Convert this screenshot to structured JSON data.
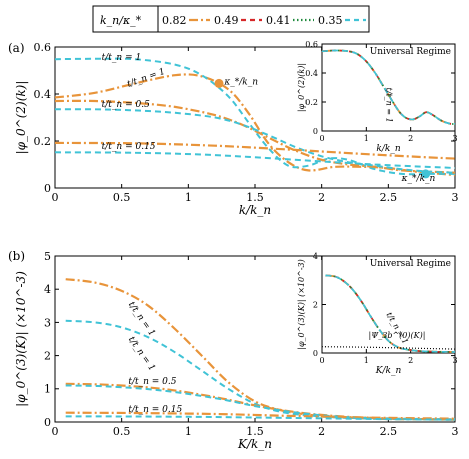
{
  "colors": {
    "orange": "#e8943a",
    "red": "#d62728",
    "green": "#1f8a3c",
    "cyan": "#40c3d6",
    "dot": "#000000"
  },
  "legend": {
    "header": "k_n/κ_*",
    "items": [
      {
        "label": "0.82",
        "color": "#e8943a",
        "dash": "dashdot"
      },
      {
        "label": "0.49",
        "color": "#d62728",
        "dash": "dash"
      },
      {
        "label": "0.41",
        "color": "#1f8a3c",
        "dash": "dot"
      },
      {
        "label": "0.35",
        "color": "#40c3d6",
        "dash": "dash"
      }
    ]
  },
  "chart_data": [
    {
      "panel": "(a)",
      "type": "line",
      "xlabel": "k/k_n",
      "ylabel": "|φ_0^(2)(k)|",
      "xlim": [
        0,
        3
      ],
      "ylim": [
        0,
        0.6
      ],
      "xticks": [
        "0",
        "0.5",
        "1",
        "1.5",
        "2",
        "2.5",
        "3"
      ],
      "yticks": [
        "0",
        "0.2",
        "0.4",
        "0.6"
      ],
      "annotations": [
        {
          "text": "t/t_n = 1",
          "x": 0.35,
          "y": 0.545
        },
        {
          "text": "t/t_n = 1",
          "x": 0.55,
          "y": 0.43,
          "rotate": -20
        },
        {
          "text": "t/t_n = 0.5",
          "x": 0.35,
          "y": 0.345
        },
        {
          "text": "t/t_n = 0.15",
          "x": 0.35,
          "y": 0.165
        },
        {
          "text": "κ_*/k_n",
          "x": 1.27,
          "y": 0.44
        },
        {
          "text": "κ_*/k_n",
          "x": 2.6,
          "y": 0.03
        }
      ],
      "markers": [
        {
          "x": 1.23,
          "y": 0.445,
          "color": "#e8943a"
        },
        {
          "x": 2.78,
          "y": 0.06,
          "color": "#40c3d6"
        }
      ],
      "series": [
        {
          "name": "0.82",
          "style": "orange",
          "x": [
            0,
            0.3,
            0.6,
            0.9,
            1.1,
            1.3,
            1.45,
            1.6,
            1.75,
            1.9,
            2.1,
            2.3,
            2.5,
            2.7,
            2.9,
            3.0
          ],
          "y": [
            0.385,
            0.405,
            0.445,
            0.48,
            0.475,
            0.42,
            0.32,
            0.19,
            0.11,
            0.075,
            0.09,
            0.09,
            0.085,
            0.07,
            0.06,
            0.055
          ]
        },
        {
          "name": "0.35",
          "style": "cyan",
          "x": [
            0,
            0.3,
            0.6,
            0.9,
            1.1,
            1.3,
            1.45,
            1.6,
            1.75,
            1.9,
            2.05,
            2.2,
            2.4,
            2.6,
            2.8,
            3.0
          ],
          "y": [
            0.548,
            0.55,
            0.548,
            0.525,
            0.48,
            0.39,
            0.28,
            0.17,
            0.095,
            0.095,
            0.125,
            0.12,
            0.08,
            0.06,
            0.06,
            0.06
          ]
        },
        {
          "name": "0.82",
          "style": "orange",
          "x": [
            0,
            0.3,
            0.6,
            0.9,
            1.2,
            1.4,
            1.6,
            1.8,
            2.0,
            2.2,
            2.4,
            2.6,
            2.8,
            3.0
          ],
          "y": [
            0.37,
            0.37,
            0.362,
            0.345,
            0.31,
            0.27,
            0.215,
            0.16,
            0.12,
            0.1,
            0.09,
            0.075,
            0.07,
            0.065
          ]
        },
        {
          "name": "0.35",
          "style": "cyan",
          "x": [
            0,
            0.3,
            0.6,
            0.9,
            1.2,
            1.4,
            1.6,
            1.8,
            2.0,
            2.2,
            2.4,
            2.6,
            2.8,
            3.0
          ],
          "y": [
            0.335,
            0.335,
            0.33,
            0.32,
            0.3,
            0.27,
            0.225,
            0.175,
            0.135,
            0.11,
            0.095,
            0.08,
            0.07,
            0.065
          ]
        },
        {
          "name": "0.82",
          "style": "orange",
          "x": [
            0,
            0.6,
            1.2,
            1.8,
            2.4,
            3.0
          ],
          "y": [
            0.192,
            0.19,
            0.18,
            0.162,
            0.142,
            0.125
          ]
        },
        {
          "name": "0.35",
          "style": "cyan",
          "x": [
            0,
            0.6,
            1.2,
            1.8,
            2.4,
            3.0
          ],
          "y": [
            0.152,
            0.15,
            0.14,
            0.12,
            0.1,
            0.085
          ]
        }
      ]
    },
    {
      "panel": "(a) inset",
      "type": "line",
      "title": "Universal Regime",
      "xlabel": "k/k_n",
      "ylabel": "|φ_0^(2)(k)|",
      "xlim": [
        0,
        3
      ],
      "ylim": [
        0,
        0.6
      ],
      "xticks": [
        "0",
        "1",
        "2",
        "3"
      ],
      "yticks": [
        "0",
        "0.2",
        "0.4",
        "0.6"
      ],
      "annotations": [
        {
          "text": "t/t_n = 1",
          "x": 1.45,
          "y": 0.3,
          "rotate": 90
        }
      ],
      "series": [
        {
          "name": "0.82",
          "style": "orange",
          "x": [
            0,
            0.3,
            0.6,
            0.8,
            1.0,
            1.2,
            1.4,
            1.6,
            1.75,
            1.9,
            2.05,
            2.2,
            2.35,
            2.5,
            2.7,
            2.9,
            3.0
          ],
          "y": [
            0.55,
            0.555,
            0.55,
            0.53,
            0.48,
            0.4,
            0.3,
            0.2,
            0.13,
            0.09,
            0.08,
            0.1,
            0.13,
            0.11,
            0.07,
            0.05,
            0.05
          ]
        },
        {
          "name": "0.49",
          "style": "red",
          "x": [
            0,
            0.3,
            0.6,
            0.8,
            1.0,
            1.2,
            1.4,
            1.6,
            1.75,
            1.9,
            2.05,
            2.2,
            2.35,
            2.5,
            2.7,
            2.9,
            3.0
          ],
          "y": [
            0.55,
            0.555,
            0.55,
            0.53,
            0.48,
            0.4,
            0.3,
            0.2,
            0.13,
            0.09,
            0.08,
            0.1,
            0.13,
            0.11,
            0.07,
            0.05,
            0.05
          ]
        },
        {
          "name": "0.41",
          "style": "green",
          "x": [
            0,
            0.3,
            0.6,
            0.8,
            1.0,
            1.2,
            1.4,
            1.6,
            1.75,
            1.9,
            2.05,
            2.2,
            2.35,
            2.5,
            2.7,
            2.9,
            3.0
          ],
          "y": [
            0.55,
            0.555,
            0.55,
            0.53,
            0.48,
            0.4,
            0.3,
            0.2,
            0.13,
            0.09,
            0.08,
            0.1,
            0.13,
            0.11,
            0.07,
            0.05,
            0.05
          ]
        },
        {
          "name": "0.35",
          "style": "cyan",
          "x": [
            0,
            0.3,
            0.6,
            0.8,
            1.0,
            1.2,
            1.4,
            1.6,
            1.75,
            1.9,
            2.05,
            2.2,
            2.35,
            2.5,
            2.7,
            2.9,
            3.0
          ],
          "y": [
            0.55,
            0.555,
            0.55,
            0.53,
            0.48,
            0.4,
            0.3,
            0.2,
            0.13,
            0.09,
            0.08,
            0.1,
            0.13,
            0.11,
            0.07,
            0.05,
            0.05
          ]
        }
      ]
    },
    {
      "panel": "(b)",
      "type": "line",
      "xlabel": "K/k_n",
      "ylabel": "|φ_0^(3)(K)| (×10^-3)",
      "xlim": [
        0,
        3
      ],
      "ylim": [
        0,
        5
      ],
      "xticks": [
        "0",
        "0.5",
        "1",
        "1.5",
        "2",
        "2.5",
        "3"
      ],
      "yticks": [
        "0",
        "1",
        "2",
        "3",
        "4",
        "5"
      ],
      "annotations": [
        {
          "text": "t/t_n = 1",
          "x": 0.55,
          "y": 3.55,
          "rotate": 55
        },
        {
          "text": "t/t_n = 1",
          "x": 0.55,
          "y": 2.5,
          "rotate": 55
        },
        {
          "text": "t/t_n = 0.5",
          "x": 0.55,
          "y": 1.15
        },
        {
          "text": "t/t_n = 0.15",
          "x": 0.55,
          "y": 0.3
        }
      ],
      "series": [
        {
          "name": "0.82",
          "style": "orange",
          "x": [
            0.08,
            0.3,
            0.5,
            0.7,
            0.9,
            1.1,
            1.3,
            1.5,
            1.7,
            1.9,
            2.1,
            2.4,
            2.7,
            3.0
          ],
          "y": [
            4.3,
            4.2,
            3.95,
            3.5,
            2.8,
            2.0,
            1.2,
            0.62,
            0.35,
            0.22,
            0.15,
            0.1,
            0.08,
            0.07
          ]
        },
        {
          "name": "0.35",
          "style": "cyan",
          "x": [
            0.08,
            0.3,
            0.5,
            0.7,
            0.9,
            1.1,
            1.3,
            1.5,
            1.7,
            1.9,
            2.1,
            2.4,
            2.7,
            3.0
          ],
          "y": [
            3.05,
            3.0,
            2.85,
            2.55,
            2.1,
            1.55,
            1.0,
            0.55,
            0.3,
            0.2,
            0.14,
            0.1,
            0.08,
            0.07
          ]
        },
        {
          "name": "0.82",
          "style": "orange",
          "x": [
            0.08,
            0.4,
            0.8,
            1.2,
            1.5,
            1.8,
            2.1,
            2.4,
            2.7,
            3.0
          ],
          "y": [
            1.15,
            1.12,
            1.0,
            0.75,
            0.5,
            0.3,
            0.18,
            0.12,
            0.09,
            0.08
          ]
        },
        {
          "name": "0.35",
          "style": "cyan",
          "x": [
            0.08,
            0.4,
            0.8,
            1.2,
            1.5,
            1.8,
            2.1,
            2.4,
            2.7,
            3.0
          ],
          "y": [
            1.1,
            1.07,
            0.95,
            0.72,
            0.48,
            0.29,
            0.17,
            0.11,
            0.09,
            0.08
          ]
        },
        {
          "name": "0.82",
          "style": "orange",
          "x": [
            0.08,
            0.6,
            1.2,
            1.8,
            2.4,
            3.0
          ],
          "y": [
            0.28,
            0.27,
            0.24,
            0.18,
            0.13,
            0.1
          ]
        },
        {
          "name": "0.35",
          "style": "cyan",
          "x": [
            0.08,
            0.6,
            1.2,
            1.8,
            2.4,
            3.0
          ],
          "y": [
            0.17,
            0.165,
            0.15,
            0.12,
            0.09,
            0.07
          ]
        }
      ]
    },
    {
      "panel": "(b) inset",
      "type": "line",
      "title": "Universal Regime",
      "xlabel": "K/k_n",
      "ylabel": "|φ_0^(3)(K)| (×10^-3)",
      "xlim": [
        0,
        3
      ],
      "ylim": [
        0,
        4
      ],
      "xticks": [
        "0",
        "1",
        "2",
        "3"
      ],
      "yticks": [
        "0",
        "2",
        "4"
      ],
      "annotations": [
        {
          "text": "t/t_n = 1",
          "x": 1.45,
          "y": 1.6,
          "rotate": 60
        },
        {
          "text": "|Ψ_3b^(0)(K)|",
          "x": 1.05,
          "y": 0.62
        }
      ],
      "series": [
        {
          "name": "0.82",
          "style": "orange",
          "x": [
            0.08,
            0.3,
            0.5,
            0.7,
            0.9,
            1.1,
            1.3,
            1.5,
            1.7,
            1.9,
            2.2,
            2.6,
            3.0
          ],
          "y": [
            3.2,
            3.15,
            2.95,
            2.6,
            2.1,
            1.5,
            0.95,
            0.5,
            0.25,
            0.15,
            0.08,
            0.05,
            0.04
          ]
        },
        {
          "name": "0.49",
          "style": "red",
          "x": [
            0.08,
            0.3,
            0.5,
            0.7,
            0.9,
            1.1,
            1.3,
            1.5,
            1.7,
            1.9,
            2.2,
            2.6,
            3.0
          ],
          "y": [
            3.2,
            3.15,
            2.95,
            2.6,
            2.1,
            1.5,
            0.95,
            0.5,
            0.25,
            0.15,
            0.08,
            0.05,
            0.04
          ]
        },
        {
          "name": "0.41",
          "style": "green",
          "x": [
            0.08,
            0.3,
            0.5,
            0.7,
            0.9,
            1.1,
            1.3,
            1.5,
            1.7,
            1.9,
            2.2,
            2.6,
            3.0
          ],
          "y": [
            3.2,
            3.15,
            2.95,
            2.6,
            2.1,
            1.5,
            0.95,
            0.5,
            0.25,
            0.15,
            0.08,
            0.05,
            0.04
          ]
        },
        {
          "name": "0.35",
          "style": "cyan",
          "x": [
            0.08,
            0.3,
            0.5,
            0.7,
            0.9,
            1.1,
            1.3,
            1.5,
            1.7,
            1.9,
            2.2,
            2.6,
            3.0
          ],
          "y": [
            3.2,
            3.15,
            2.95,
            2.6,
            2.1,
            1.5,
            0.95,
            0.5,
            0.25,
            0.15,
            0.08,
            0.05,
            0.04
          ]
        },
        {
          "name": "|Ψ_3b^(0)(K)|",
          "style": "dot",
          "x": [
            0,
            0.5,
            1.0,
            1.5,
            2.0,
            2.5,
            3.0
          ],
          "y": [
            0.26,
            0.25,
            0.24,
            0.22,
            0.2,
            0.18,
            0.16
          ]
        }
      ]
    }
  ]
}
